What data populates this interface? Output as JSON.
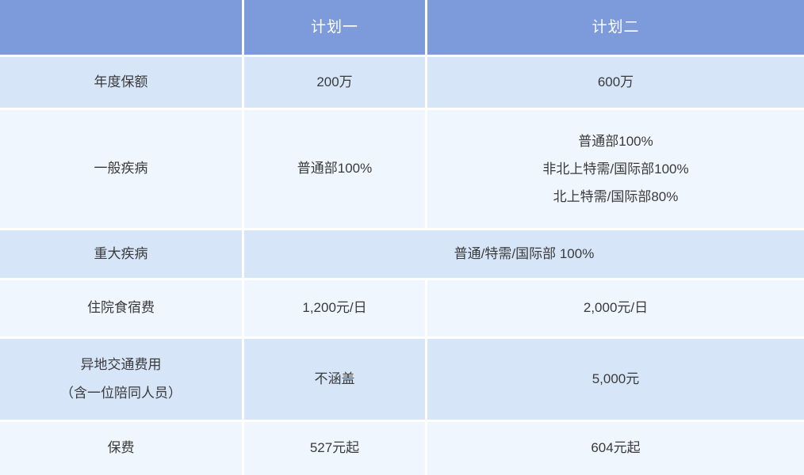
{
  "colors": {
    "header_bg": "#7D9ADB",
    "header_text": "#FFFFFF",
    "row_blue_bg": "#D7E5F9",
    "row_light_bg": "#F0F6FD",
    "body_text": "#3A3A3A",
    "divider": "#FFFFFF"
  },
  "chart_data": {
    "type": "table",
    "title": "",
    "columns": [
      "",
      "计划一",
      "计划二"
    ],
    "rows": [
      {
        "label": "年度保额",
        "plan1": "200万",
        "plan2": "600万"
      },
      {
        "label": "一般疾病",
        "plan1": "普通部100%",
        "plan2_lines": [
          "普通部100%",
          "非北上特需/国际部100%",
          "北上特需/国际部80%"
        ]
      },
      {
        "label": "重大疾病",
        "all_plans": "普通/特需/国际部 100%"
      },
      {
        "label": "住院食宿费",
        "plan1": "1,200元/日",
        "plan2": "2,000元/日"
      },
      {
        "label_lines": [
          "异地交通费用",
          "（含一位陪同人员）"
        ],
        "plan1": "不涵盖",
        "plan2": "5,000元"
      },
      {
        "label": "保费",
        "plan1": "527元起",
        "plan2": "604元起"
      }
    ]
  }
}
